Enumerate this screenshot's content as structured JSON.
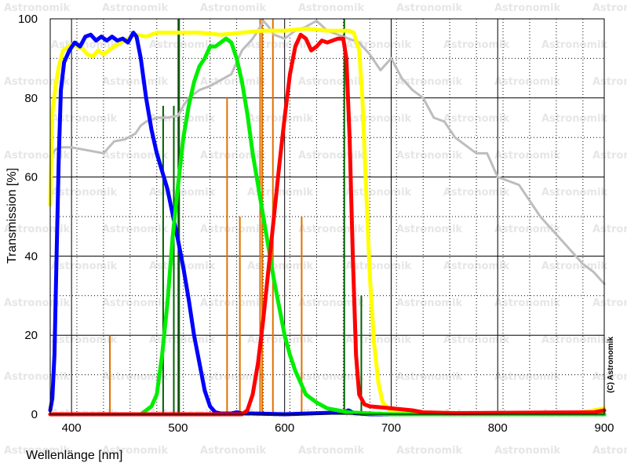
{
  "chart_data": {
    "type": "line",
    "xlabel": "Wellenlänge [nm]",
    "ylabel": "Transmission [%]",
    "xlim": [
      380,
      900
    ],
    "ylim": [
      0,
      100
    ],
    "x_ticks": [
      400,
      500,
      600,
      700,
      800,
      900
    ],
    "y_ticks": [
      0,
      20,
      40,
      60,
      80,
      100
    ],
    "grid": "major solid, minor dotted",
    "copyright": "(C) Astronomik",
    "watermark": "Astronomik",
    "colors": {
      "blue": "#0000ff",
      "green": "#00ee00",
      "red": "#ff0000",
      "yellow": "#ffff00",
      "sensor": "#bdbdbd",
      "emission_orange": "#e07000",
      "emission_green": "#006400"
    },
    "series": [
      {
        "color": "sensor",
        "points": [
          [
            380,
            65
          ],
          [
            385,
            67
          ],
          [
            390,
            67.5
          ],
          [
            400,
            67.5
          ],
          [
            410,
            67
          ],
          [
            420,
            66.5
          ],
          [
            430,
            66
          ],
          [
            435,
            67.5
          ],
          [
            440,
            69
          ],
          [
            450,
            69.5
          ],
          [
            460,
            71
          ],
          [
            465,
            73
          ],
          [
            470,
            74
          ],
          [
            480,
            75
          ],
          [
            490,
            75
          ],
          [
            500,
            75.5
          ],
          [
            505,
            78
          ],
          [
            510,
            80
          ],
          [
            520,
            82
          ],
          [
            530,
            83
          ],
          [
            540,
            84.5
          ],
          [
            550,
            86
          ],
          [
            560,
            92
          ],
          [
            570,
            95
          ],
          [
            575,
            97
          ],
          [
            580,
            99.5
          ],
          [
            585,
            98
          ],
          [
            590,
            96
          ],
          [
            600,
            95
          ],
          [
            610,
            97
          ],
          [
            620,
            98
          ],
          [
            630,
            99.5
          ],
          [
            640,
            97
          ],
          [
            650,
            96
          ],
          [
            660,
            95
          ],
          [
            670,
            94
          ],
          [
            680,
            91
          ],
          [
            690,
            87
          ],
          [
            700,
            90
          ],
          [
            710,
            85
          ],
          [
            720,
            82
          ],
          [
            730,
            80
          ],
          [
            740,
            75
          ],
          [
            750,
            74
          ],
          [
            760,
            70
          ],
          [
            770,
            68
          ],
          [
            780,
            66
          ],
          [
            790,
            66
          ],
          [
            800,
            60
          ],
          [
            810,
            59
          ],
          [
            820,
            58
          ],
          [
            830,
            54
          ],
          [
            840,
            50
          ],
          [
            850,
            47
          ],
          [
            860,
            44
          ],
          [
            870,
            41
          ],
          [
            880,
            38
          ],
          [
            890,
            36
          ],
          [
            900,
            33
          ]
        ]
      },
      {
        "color": "yellow",
        "points": [
          [
            380,
            53
          ],
          [
            382,
            76
          ],
          [
            385,
            83
          ],
          [
            388,
            88
          ],
          [
            392,
            92
          ],
          [
            400,
            93.5
          ],
          [
            410,
            92.5
          ],
          [
            415,
            91
          ],
          [
            420,
            90.5
          ],
          [
            425,
            92
          ],
          [
            430,
            91
          ],
          [
            440,
            93
          ],
          [
            450,
            94.5
          ],
          [
            460,
            96
          ],
          [
            470,
            95.5
          ],
          [
            480,
            96.5
          ],
          [
            500,
            96.5
          ],
          [
            520,
            96.5
          ],
          [
            540,
            96
          ],
          [
            560,
            96.5
          ],
          [
            580,
            97
          ],
          [
            600,
            97
          ],
          [
            620,
            97.5
          ],
          [
            640,
            97
          ],
          [
            660,
            97
          ],
          [
            665,
            96.5
          ],
          [
            670,
            92
          ],
          [
            673,
            80
          ],
          [
            676,
            60
          ],
          [
            680,
            35
          ],
          [
            684,
            18
          ],
          [
            688,
            8
          ],
          [
            692,
            3
          ],
          [
            700,
            0.8
          ],
          [
            720,
            0.5
          ],
          [
            760,
            0.3
          ],
          [
            850,
            0.3
          ],
          [
            880,
            0.5
          ],
          [
            890,
            1
          ],
          [
            900,
            1.5
          ]
        ]
      },
      {
        "color": "blue",
        "points": [
          [
            380,
            1
          ],
          [
            382,
            4
          ],
          [
            384,
            15
          ],
          [
            386,
            40
          ],
          [
            388,
            65
          ],
          [
            390,
            82
          ],
          [
            393,
            89
          ],
          [
            398,
            92
          ],
          [
            403,
            94
          ],
          [
            408,
            93
          ],
          [
            413,
            95.5
          ],
          [
            418,
            96
          ],
          [
            423,
            94.5
          ],
          [
            428,
            95.5
          ],
          [
            433,
            94.5
          ],
          [
            438,
            95.5
          ],
          [
            443,
            94.5
          ],
          [
            448,
            95
          ],
          [
            453,
            94
          ],
          [
            458,
            96.5
          ],
          [
            461,
            95.5
          ],
          [
            465,
            90
          ],
          [
            470,
            80
          ],
          [
            475,
            72
          ],
          [
            480,
            66
          ],
          [
            490,
            57
          ],
          [
            500,
            44
          ],
          [
            505,
            37
          ],
          [
            510,
            29
          ],
          [
            515,
            20
          ],
          [
            520,
            13
          ],
          [
            525,
            6
          ],
          [
            530,
            2
          ],
          [
            535,
            0.5
          ],
          [
            540,
            0.2
          ],
          [
            550,
            0.2
          ],
          [
            555,
            0.5
          ],
          [
            560,
            0.2
          ],
          [
            570,
            0.2
          ],
          [
            600,
            0
          ],
          [
            655,
            0.5
          ],
          [
            660,
            1
          ],
          [
            665,
            0.3
          ],
          [
            680,
            0
          ],
          [
            900,
            0
          ]
        ]
      },
      {
        "color": "green",
        "points": [
          [
            380,
            0
          ],
          [
            450,
            0
          ],
          [
            465,
            0
          ],
          [
            470,
            1
          ],
          [
            475,
            2
          ],
          [
            480,
            5
          ],
          [
            485,
            15
          ],
          [
            490,
            28
          ],
          [
            495,
            45
          ],
          [
            500,
            58
          ],
          [
            505,
            70
          ],
          [
            510,
            78
          ],
          [
            515,
            84
          ],
          [
            520,
            88
          ],
          [
            525,
            90
          ],
          [
            530,
            93
          ],
          [
            535,
            93
          ],
          [
            540,
            94
          ],
          [
            545,
            95
          ],
          [
            550,
            94
          ],
          [
            555,
            90
          ],
          [
            560,
            84
          ],
          [
            565,
            76
          ],
          [
            570,
            66
          ],
          [
            575,
            58
          ],
          [
            580,
            50
          ],
          [
            585,
            42
          ],
          [
            590,
            34
          ],
          [
            595,
            27
          ],
          [
            600,
            20
          ],
          [
            605,
            15
          ],
          [
            610,
            11
          ],
          [
            615,
            8
          ],
          [
            620,
            5
          ],
          [
            630,
            3
          ],
          [
            640,
            1.5
          ],
          [
            650,
            1
          ],
          [
            660,
            0.5
          ],
          [
            680,
            0.2
          ],
          [
            700,
            0
          ],
          [
            900,
            0
          ]
        ]
      },
      {
        "color": "red",
        "points": [
          [
            380,
            0
          ],
          [
            560,
            0
          ],
          [
            565,
            1
          ],
          [
            570,
            5
          ],
          [
            575,
            13
          ],
          [
            580,
            24
          ],
          [
            585,
            37
          ],
          [
            590,
            50
          ],
          [
            595,
            63
          ],
          [
            600,
            75
          ],
          [
            605,
            86
          ],
          [
            610,
            93
          ],
          [
            615,
            96
          ],
          [
            620,
            95
          ],
          [
            625,
            92
          ],
          [
            630,
            93
          ],
          [
            635,
            94.5
          ],
          [
            640,
            94
          ],
          [
            645,
            94.5
          ],
          [
            650,
            95
          ],
          [
            655,
            95
          ],
          [
            658,
            90
          ],
          [
            661,
            70
          ],
          [
            664,
            40
          ],
          [
            667,
            15
          ],
          [
            670,
            5
          ],
          [
            675,
            2.5
          ],
          [
            680,
            2
          ],
          [
            700,
            1.5
          ],
          [
            720,
            1
          ],
          [
            730,
            0.5
          ],
          [
            760,
            0.3
          ],
          [
            880,
            0.5
          ],
          [
            890,
            0.5
          ],
          [
            900,
            1
          ]
        ]
      }
    ],
    "emission_lines": [
      {
        "x": 436,
        "y": 20,
        "color": "emission_orange"
      },
      {
        "x": 486,
        "y": 78,
        "color": "emission_green"
      },
      {
        "x": 496,
        "y": 78,
        "color": "emission_green"
      },
      {
        "x": 501,
        "y": 100,
        "color": "emission_green"
      },
      {
        "x": 546,
        "y": 80,
        "color": "emission_orange"
      },
      {
        "x": 558,
        "y": 50,
        "color": "emission_orange"
      },
      {
        "x": 577,
        "y": 100,
        "color": "emission_orange"
      },
      {
        "x": 579,
        "y": 100,
        "color": "emission_orange"
      },
      {
        "x": 589,
        "y": 100,
        "color": "emission_orange"
      },
      {
        "x": 616,
        "y": 50,
        "color": "emission_orange"
      },
      {
        "x": 656,
        "y": 100,
        "color": "emission_green"
      },
      {
        "x": 672,
        "y": 30,
        "color": "emission_green"
      }
    ]
  }
}
